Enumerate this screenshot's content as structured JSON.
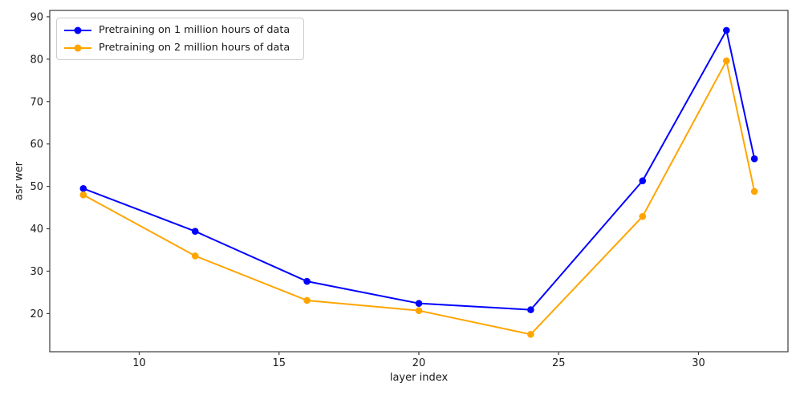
{
  "chart_data": {
    "type": "line",
    "title": "",
    "xlabel": "layer index",
    "ylabel": "asr wer",
    "x": [
      8,
      12,
      16,
      20,
      24,
      28,
      31,
      32
    ],
    "series": [
      {
        "name": "Pretraining on 1 million hours of data",
        "color": "#0000ff",
        "values": [
          49.5,
          39.4,
          27.6,
          22.4,
          20.9,
          51.3,
          86.8,
          56.5
        ]
      },
      {
        "name": "Pretraining on 2 million hours of data",
        "color": "#ffa500",
        "values": [
          48.0,
          33.6,
          23.1,
          20.7,
          15.1,
          42.9,
          79.6,
          48.8
        ]
      }
    ],
    "xticks": [
      10,
      15,
      20,
      25,
      30
    ],
    "yticks": [
      20,
      30,
      40,
      50,
      60,
      70,
      80,
      90
    ],
    "xlim": [
      6.8,
      33.2
    ],
    "ylim": [
      11,
      91.5
    ],
    "grid": false,
    "marker": "circle",
    "legend_position": "upper-left",
    "spine_color": "#3b3b3b"
  }
}
